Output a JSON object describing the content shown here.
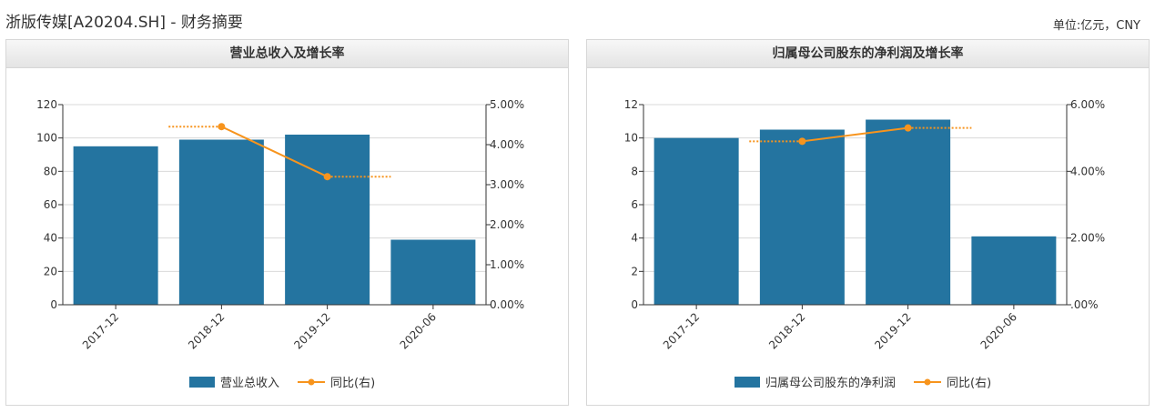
{
  "page": {
    "title": "浙版传媒[A20204.SH] - 财务摘要",
    "unit": "单位:亿元，CNY"
  },
  "colors": {
    "bar": "#2474a0",
    "line": "#f7941d",
    "grid": "#d9d9d9",
    "axis": "#333333"
  },
  "chart_data": [
    {
      "type": "bar",
      "title": "营业总收入及增长率",
      "categories": [
        "2017-12",
        "2018-12",
        "2019-12",
        "2020-06"
      ],
      "series": [
        {
          "name": "营业总收入",
          "axis": "left",
          "values": [
            95,
            99,
            102,
            39
          ]
        }
      ],
      "line": {
        "name": "同比(右)",
        "axis": "right",
        "values": [
          null,
          4.45,
          3.2,
          null
        ]
      },
      "left_axis": {
        "min": 0,
        "max": 120,
        "ticks": [
          "0",
          "20",
          "40",
          "60",
          "80",
          "100",
          "120"
        ]
      },
      "right_axis": {
        "min": 0,
        "max": 5,
        "ticks": [
          "0.00%",
          "1.00%",
          "2.00%",
          "3.00%",
          "4.00%",
          "5.00%"
        ]
      },
      "legend": {
        "bar_label": "营业总收入",
        "line_label": "同比(右)"
      },
      "grid": true
    },
    {
      "type": "bar",
      "title": "归属母公司股东的净利润及增长率",
      "categories": [
        "2017-12",
        "2018-12",
        "2019-12",
        "2020-06"
      ],
      "series": [
        {
          "name": "归属母公司股东的净利润",
          "axis": "left",
          "values": [
            10.0,
            10.5,
            11.1,
            4.1
          ]
        }
      ],
      "line": {
        "name": "同比(右)",
        "axis": "right",
        "values": [
          null,
          4.9,
          5.3,
          null
        ]
      },
      "left_axis": {
        "min": 0,
        "max": 12,
        "ticks": [
          "0",
          "2",
          "4",
          "6",
          "8",
          "10",
          "12"
        ]
      },
      "right_axis": {
        "min": 0,
        "max": 6,
        "ticks": [
          ".00%",
          "2.00%",
          "4.00%",
          "6.00%"
        ]
      },
      "legend": {
        "bar_label": "归属母公司股东的净利润",
        "line_label": "同比(右)"
      },
      "grid": true
    }
  ]
}
